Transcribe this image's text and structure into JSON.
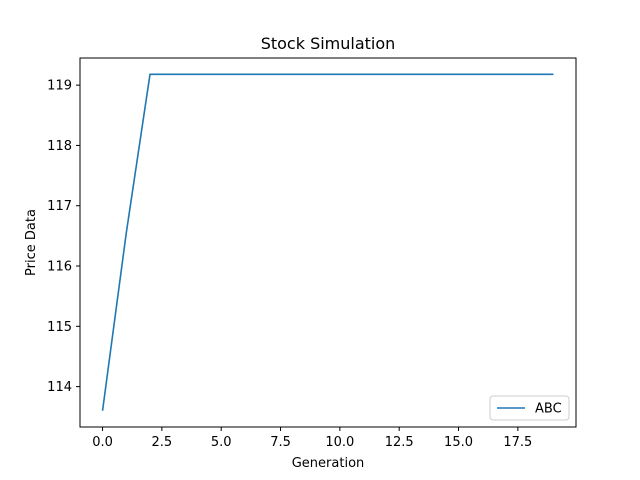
{
  "chart_data": {
    "type": "line",
    "title": "Stock Simulation",
    "xlabel": "Generation",
    "ylabel": "Price Data",
    "xlim": [
      -0.95,
      19.95
    ],
    "ylim": [
      113.33,
      119.45
    ],
    "xticks": [
      0.0,
      2.5,
      5.0,
      7.5,
      10.0,
      12.5,
      15.0,
      17.5
    ],
    "xtick_labels": [
      "0.0",
      "2.5",
      "5.0",
      "7.5",
      "10.0",
      "12.5",
      "15.0",
      "17.5"
    ],
    "yticks": [
      114,
      115,
      116,
      117,
      118,
      119
    ],
    "ytick_labels": [
      "114",
      "115",
      "116",
      "117",
      "118",
      "119"
    ],
    "grid": false,
    "legend_position": "lower-right",
    "series": [
      {
        "name": "ABC",
        "color": "#1f77b4",
        "x": [
          0,
          1,
          2,
          3,
          4,
          5,
          6,
          7,
          8,
          9,
          10,
          11,
          12,
          13,
          14,
          15,
          16,
          17,
          18,
          19
        ],
        "y": [
          113.6,
          116.55,
          119.18,
          119.18,
          119.18,
          119.18,
          119.18,
          119.18,
          119.18,
          119.18,
          119.18,
          119.18,
          119.18,
          119.18,
          119.18,
          119.18,
          119.18,
          119.18,
          119.18,
          119.18
        ]
      }
    ]
  }
}
